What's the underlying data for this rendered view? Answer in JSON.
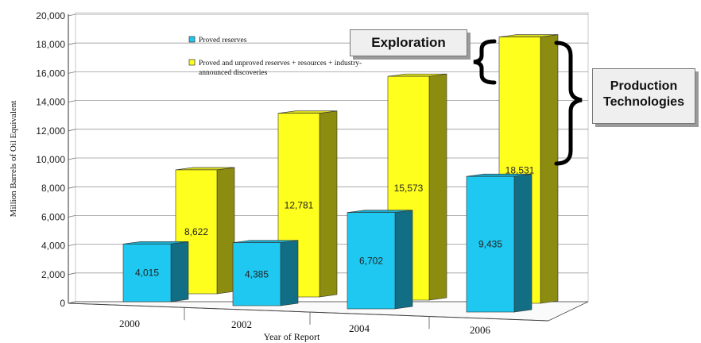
{
  "chart_data": {
    "type": "bar",
    "title": "",
    "xlabel": "Year of Report",
    "ylabel": "Million Barrels of Oil Equivalent",
    "ylim": [
      0,
      20000
    ],
    "yticks": [
      "0",
      "2,000",
      "4,000",
      "6,000",
      "8,000",
      "10,000",
      "12,000",
      "14,000",
      "16,000",
      "18,000",
      "20,000"
    ],
    "categories": [
      "2000",
      "2002",
      "2004",
      "2006"
    ],
    "series": [
      {
        "name": "Proved reserves",
        "color": "#1ec8f0",
        "values": [
          4015,
          4385,
          6702,
          9435
        ],
        "labels": [
          "4,015",
          "4,385",
          "6,702",
          "9,435"
        ]
      },
      {
        "name": "Proved and unproved reserves + resources + industry-announced discoveries",
        "color": "#ffff1e",
        "values": [
          8622,
          12781,
          15573,
          18531
        ],
        "labels": [
          "8,622",
          "12,781",
          "15,573",
          "18,531"
        ]
      }
    ],
    "legend": {
      "placement": "top-left",
      "lines": [
        "Proved reserves",
        "Proved and unproved reserves + resources + industry-",
        "announced discoveries"
      ]
    },
    "grid": true,
    "annotations": {
      "exploration": "Exploration",
      "production_line1": "Production",
      "production_line2": "Technologies"
    }
  }
}
